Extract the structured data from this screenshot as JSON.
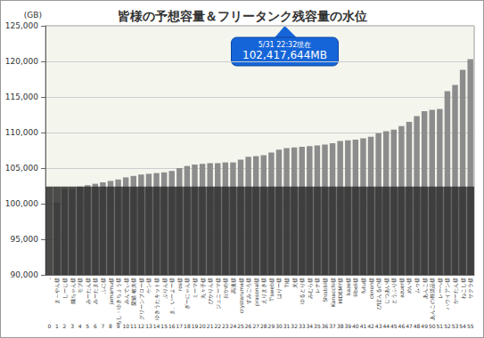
{
  "chart_data": {
    "type": "bar",
    "title": "皆様の予想容量＆フリータンク残容量の水位",
    "y_label": "(GB)",
    "annotation": [
      "5/31 22:32現在",
      "102,417,644MB"
    ],
    "categories": [
      "-",
      "ま～やん様",
      "しーじ様",
      "鐵ちゃん様",
      "モブ様",
      "みーたん様",
      "みーたま様",
      "ふに様",
      "jamamu様",
      "もし・ゆきちょう様",
      "みんでぃ様",
      "愛猫 敏夫様",
      "グリーンブロー様",
      "ケン様",
      "ゆきうたキット様",
      "ぷりん様",
      "ま、いーよー様",
      "ros様",
      "ぎーにゃん様",
      "ミーマ様",
      "丸々子様",
      "ぴかりん様",
      "ジュニーマ様",
      "おかめ様",
      "高速様",
      "crystaruma様",
      "すみごろ様",
      "prasonal様",
      "えりまき様",
      "T'sweb様",
      "はりー様",
      "TI様",
      "犬様",
      "ゆるとり様",
      "みむら様",
      "レナ様",
      "Shisbbl様",
      "Kanacchi様",
      "HIDEMY様",
      "kaze様",
      "lilbeli様",
      "futu様",
      "cknon様",
      "ぴぽんるの様",
      "じつあい様",
      "とうふり様",
      "azuer様",
      "めい様",
      "ムゥ様",
      "あんこ様",
      "あんこの推奨品様",
      "レーへ様",
      "ハウイアン様",
      "かーたん様",
      "ねこし様",
      "サクラ様"
    ],
    "numbers": [
      0,
      1,
      2,
      3,
      4,
      5,
      6,
      7,
      8,
      9,
      10,
      11,
      12,
      13,
      14,
      15,
      16,
      17,
      18,
      19,
      20,
      21,
      22,
      23,
      24,
      25,
      26,
      27,
      28,
      29,
      30,
      31,
      32,
      33,
      34,
      35,
      36,
      37,
      38,
      39,
      40,
      41,
      42,
      43,
      44,
      45,
      46,
      47,
      48,
      49,
      50,
      51,
      52,
      53,
      54,
      55
    ],
    "values": [
      null,
      100200,
      102000,
      102000,
      102400,
      102600,
      102800,
      103000,
      103200,
      103400,
      103700,
      103900,
      104100,
      104200,
      104300,
      104400,
      104600,
      105000,
      105300,
      105500,
      105600,
      105700,
      105700,
      105800,
      105800,
      106200,
      106600,
      106700,
      106800,
      107200,
      107600,
      107800,
      107900,
      108000,
      108100,
      108200,
      108300,
      108500,
      108800,
      108900,
      109000,
      109200,
      109400,
      109900,
      110200,
      110400,
      110900,
      111500,
      112300,
      113000,
      113200,
      113300,
      115800,
      116700,
      118800,
      120300
    ],
    "color": "#8c8c8c",
    "level": 102417.644,
    "level_color": "#333333",
    "ylim": [
      90000,
      125000
    ],
    "yticks": [
      {
        "value": 90000,
        "label": "90,000"
      },
      {
        "value": 95000,
        "label": "95,000"
      },
      {
        "value": 100000,
        "label": "100,000"
      },
      {
        "value": 105000,
        "label": "105,000"
      },
      {
        "value": 110000,
        "label": "110,000"
      },
      {
        "value": 115000,
        "label": "115,000"
      },
      {
        "value": 120000,
        "label": "120,000"
      },
      {
        "value": 125000,
        "label": "125,000"
      }
    ],
    "grid": true,
    "data_labels": false
  }
}
